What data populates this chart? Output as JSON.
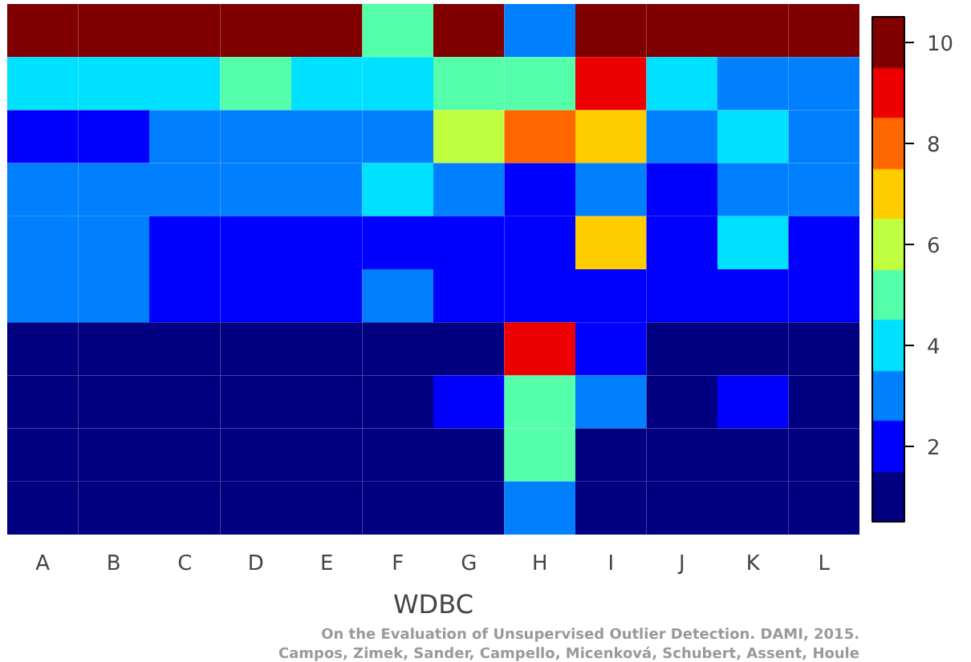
{
  "chart_data": {
    "type": "heatmap",
    "xlabel": "WDBC",
    "categories": [
      "A",
      "B",
      "C",
      "D",
      "E",
      "F",
      "G",
      "H",
      "I",
      "J",
      "K",
      "L"
    ],
    "y_categories": [
      null,
      null,
      null,
      null,
      null,
      null,
      null,
      null,
      null,
      null
    ],
    "cells": [
      [
        10,
        10,
        10,
        10,
        10,
        5,
        10,
        3,
        10,
        10,
        10,
        10
      ],
      [
        4,
        4,
        4,
        5,
        4,
        4,
        5,
        5,
        9,
        4,
        3,
        3
      ],
      [
        2,
        2,
        3,
        3,
        3,
        3,
        6,
        8,
        7,
        3,
        4,
        3
      ],
      [
        3,
        3,
        3,
        3,
        3,
        4,
        3,
        2,
        3,
        2,
        3,
        3
      ],
      [
        3,
        3,
        2,
        2,
        2,
        2,
        2,
        2,
        7,
        2,
        4,
        2
      ],
      [
        3,
        3,
        2,
        2,
        2,
        3,
        2,
        2,
        2,
        2,
        2,
        2
      ],
      [
        1,
        1,
        1,
        1,
        1,
        1,
        1,
        9,
        2,
        1,
        1,
        1
      ],
      [
        1,
        1,
        1,
        1,
        1,
        1,
        2,
        5,
        3,
        1,
        2,
        1
      ],
      [
        1,
        1,
        1,
        1,
        1,
        1,
        1,
        5,
        1,
        1,
        1,
        1
      ],
      [
        1,
        1,
        1,
        1,
        1,
        1,
        1,
        3,
        1,
        1,
        1,
        1
      ]
    ],
    "clim": [
      0.5,
      10.5
    ],
    "cticks": [
      2,
      4,
      6,
      8,
      10
    ],
    "annotations": [
      "On the Evaluation of Unsupervised Outlier Detection. DAMI, 2015.",
      "Campos, Zimek, Sander, Campello, Micenková, Schubert, Assent, Houle"
    ]
  }
}
